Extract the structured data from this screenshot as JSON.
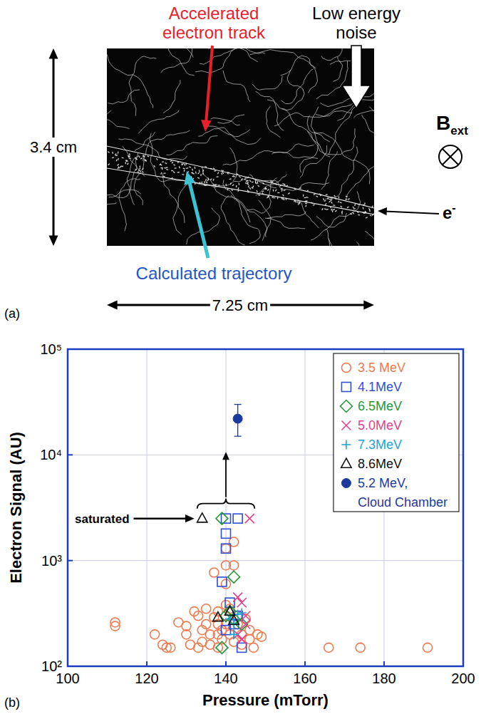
{
  "panel_a": {
    "letter": "(a)",
    "height": "3.4 cm",
    "width": "7.25 cm",
    "track_label": "Accelerated electron track",
    "noise_label": "Low energy noise",
    "trajectory_label": "Calculated trajectory",
    "field_label": "B",
    "field_subscript": "ext",
    "beam_label": "e",
    "beam_superscript": "-"
  },
  "chart_data": {
    "type": "scatter",
    "panel_letter": "(b)",
    "x_label": "Pressure (mTorr)",
    "y_label": "Electron Signal (AU)",
    "log": "y",
    "grid": true,
    "legend": "upper right",
    "annotation": "saturated",
    "xlim": [
      100,
      200
    ],
    "xticks": [
      100,
      120,
      140,
      160,
      180,
      200
    ],
    "ylim": [
      100,
      100000
    ],
    "yticks": [
      {
        "value": 100,
        "label": "10²"
      },
      {
        "value": 1000,
        "label": "10³"
      },
      {
        "value": 10000,
        "label": "10⁴"
      },
      {
        "value": 100000,
        "label": "10⁵"
      }
    ],
    "series": [
      {
        "name": "3.5 MeV",
        "color": "#f07a50",
        "marker": "circle",
        "x": [
          112,
          112,
          122,
          124,
          125,
          126,
          128,
          130,
          130,
          131,
          132,
          133,
          133,
          134,
          134,
          135,
          135,
          136,
          136,
          137,
          137,
          138,
          138,
          138,
          138,
          139,
          139,
          140,
          140,
          140,
          140,
          140,
          140,
          141,
          141,
          142,
          142,
          142,
          143,
          143,
          144,
          144,
          145,
          146,
          146,
          147,
          148,
          149,
          166,
          174,
          191
        ],
        "values": [
          260,
          240,
          200,
          160,
          150,
          150,
          260,
          240,
          200,
          160,
          330,
          300,
          150,
          220,
          170,
          350,
          250,
          200,
          160,
          290,
          770,
          330,
          250,
          200,
          150,
          180,
          220,
          380,
          300,
          250,
          600,
          900,
          1300,
          350,
          200,
          170,
          1500,
          900,
          250,
          300,
          200,
          160,
          280,
          220,
          180,
          150,
          200,
          190,
          150,
          150,
          150
        ]
      },
      {
        "name": "4.1MeV",
        "color": "#2f4fd6",
        "marker": "square",
        "x": [
          140,
          143,
          140,
          140,
          139,
          141,
          143,
          144,
          142,
          140
        ],
        "values": [
          2500,
          2500,
          1800,
          1300,
          630,
          400,
          300,
          150,
          250,
          220
        ]
      },
      {
        "name": "6.5MeV",
        "color": "#23973a",
        "marker": "diamond",
        "x": [
          139,
          142,
          141,
          140,
          139,
          142,
          144
        ],
        "values": [
          2500,
          700,
          330,
          300,
          150,
          280,
          250
        ]
      },
      {
        "name": "5.0MeV",
        "color": "#e2408c",
        "marker": "x",
        "x": [
          146,
          143,
          144,
          145,
          145,
          143,
          144
        ],
        "values": [
          2500,
          450,
          400,
          300,
          250,
          200,
          180
        ]
      },
      {
        "name": "7.3MeV",
        "color": "#1aa3d6",
        "marker": "plus",
        "x": [
          142,
          143,
          144,
          141,
          142
        ],
        "values": [
          250,
          310,
          320,
          280,
          200
        ]
      },
      {
        "name": "8.6MeV",
        "color": "#111111",
        "marker": "triangle",
        "x": [
          134,
          138,
          141,
          142
        ],
        "values": [
          2500,
          290,
          330,
          270
        ]
      },
      {
        "name": "5.2 MeV, Cloud Chamber",
        "color": "#1d3a9e",
        "marker": "filled_circle",
        "x": [
          143
        ],
        "values": [
          22000
        ],
        "error_low": [
          7000
        ],
        "error_high": [
          8000
        ]
      }
    ]
  }
}
